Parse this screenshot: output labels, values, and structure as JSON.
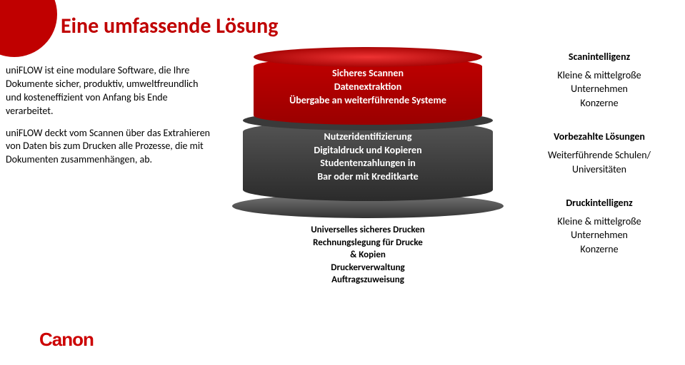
{
  "accentColor": "#c00000",
  "title": "Eine umfassende Lösung",
  "left": {
    "p1": "uniFLOW ist eine modulare Software, die Ihre Dokumente sicher, produktiv, umweltfreundlich und kosteneffizient von Anfang bis Ende verarbeitet.",
    "p2": "uniFLOW deckt vom Scannen über das Extrahieren von Daten bis zum Drucken alle Prozesse, die mit Dokumenten zusammenhängen, ab."
  },
  "logo": "Canon",
  "stack": {
    "layer1": {
      "line1": "Sicheres Scannen",
      "line2": "Datenextraktion",
      "line3": "Übergabe an weiterführende Systeme"
    },
    "layer2": {
      "line1": "Nutzeridentifizierung",
      "line2": "Digitaldruck und Kopieren",
      "line3": "Studentenzahlungen in",
      "line4": "Bar oder mit Kreditkarte"
    },
    "layer3": {
      "line1": "Universelles sicheres Drucken",
      "line2": "Rechnungslegung für Drucke",
      "line3": "& Kopien",
      "line4": "Druckerverwaltung",
      "line5": "Auftragszuweisung"
    }
  },
  "right": {
    "g1": {
      "h": "Scanintelligenz",
      "l1": "Kleine & mittelgroße",
      "l2": "Unternehmen",
      "l3": "Konzerne"
    },
    "g2": {
      "h": "Vorbezahlte Lösungen",
      "l1": "Weiterführende Schulen/",
      "l2": "Universitäten"
    },
    "g3": {
      "h": "Druckintelligenz",
      "l1": "Kleine & mittelgroße",
      "l2": "Unternehmen",
      "l3": "Konzerne"
    }
  }
}
